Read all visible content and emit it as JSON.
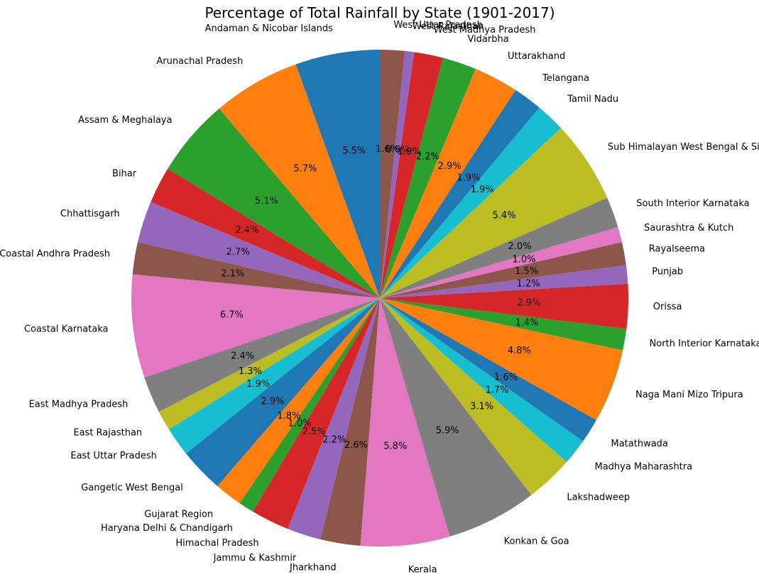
{
  "chart_data": {
    "type": "pie",
    "title": "Percentage of Total Rainfall by State (1901-2017)",
    "start_angle_deg": 90,
    "direction": "counterclockwise",
    "categories": [
      "Andaman & Nicobar Islands",
      "Arunachal Pradesh",
      "Assam & Meghalaya",
      "Bihar",
      "Chhattisgarh",
      "Coastal Andhra Pradesh",
      "Coastal Karnataka",
      "East Madhya Pradesh",
      "East Rajasthan",
      "East Uttar Pradesh",
      "Gangetic West Bengal",
      "Gujarat Region",
      "Haryana Delhi & Chandigarh",
      "Himachal Pradesh",
      "Jammu & Kashmir",
      "Jharkhand",
      "Kerala",
      "Konkan & Goa",
      "Lakshadweep",
      "Madhya Maharashtra",
      "Matathwada",
      "Naga Mani Mizo Tripura",
      "North Interior Karnataka",
      "Orissa",
      "Punjab",
      "Rayalseema",
      "Saurashtra & Kutch",
      "South Interior Karnataka",
      "Sub Himalayan West Bengal & Sikkim",
      "Tamil Nadu",
      "Telangana",
      "Uttarakhand",
      "Vidarbha",
      "West Madhya Pradesh",
      "West Rajasthan",
      "West Uttar Pradesh"
    ],
    "values": [
      5.5,
      5.7,
      5.1,
      2.4,
      2.7,
      2.1,
      6.7,
      2.4,
      1.3,
      1.9,
      2.9,
      1.8,
      1.0,
      2.5,
      2.2,
      2.6,
      5.8,
      5.9,
      3.1,
      1.7,
      1.6,
      4.8,
      1.4,
      2.9,
      1.2,
      1.5,
      1.0,
      2.0,
      5.4,
      1.9,
      1.9,
      2.9,
      2.2,
      1.9,
      0.6,
      1.6
    ],
    "pct_labels": [
      "5.5%",
      "5.7%",
      "5.1%",
      "2.4%",
      "2.7%",
      "2.1%",
      "6.7%",
      "2.4%",
      "1.3%",
      "1.9%",
      "2.9%",
      "1.8%",
      "1.0%",
      "2.5%",
      "2.2%",
      "2.6%",
      "5.8%",
      "5.9%",
      "3.1%",
      "1.7%",
      "1.6%",
      "4.8%",
      "1.4%",
      "2.9%",
      "1.2%",
      "1.5%",
      "1.0%",
      "2.0%",
      "5.4%",
      "1.9%",
      "1.9%",
      "2.9%",
      "2.2%",
      "1.9%",
      "0.6%",
      "1.6%"
    ],
    "colors": [
      "#1f77b4",
      "#ff7f0e",
      "#2ca02c",
      "#d62728",
      "#9467bd",
      "#8c564b",
      "#e377c2",
      "#7f7f7f",
      "#bcbd22",
      "#17becf"
    ]
  }
}
